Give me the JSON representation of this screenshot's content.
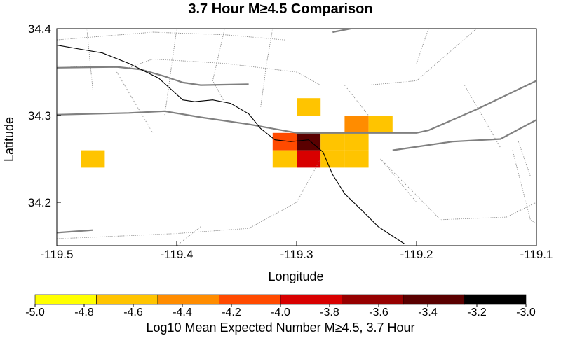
{
  "chart_data": {
    "type": "heatmap",
    "title": "3.7 Hour M≥4.5 Comparison",
    "xlabel": "Longitude",
    "ylabel": "Latitude",
    "xlim": [
      -119.5,
      -119.1
    ],
    "ylim": [
      34.15,
      34.4
    ],
    "x_ticks": [
      {
        "value": -119.5,
        "label": "-119.5"
      },
      {
        "value": -119.4,
        "label": "-119.4"
      },
      {
        "value": -119.3,
        "label": "-119.3"
      },
      {
        "value": -119.2,
        "label": "-119.2"
      },
      {
        "value": -119.1,
        "label": "-119.1"
      }
    ],
    "y_ticks": [
      {
        "value": 34.2,
        "label": "34.2"
      },
      {
        "value": 34.3,
        "label": "34.3"
      },
      {
        "value": 34.4,
        "label": "34.4"
      }
    ],
    "cell_size_deg": 0.02,
    "cells": [
      {
        "lon": -119.47,
        "lat": 34.25,
        "value": -4.7
      },
      {
        "lon": -119.29,
        "lat": 34.31,
        "value": -4.7
      },
      {
        "lon": -119.25,
        "lat": 34.29,
        "value": -4.5
      },
      {
        "lon": -119.23,
        "lat": 34.29,
        "value": -4.7
      },
      {
        "lon": -119.31,
        "lat": 34.27,
        "value": -4.1
      },
      {
        "lon": -119.29,
        "lat": 34.27,
        "value": -3.3
      },
      {
        "lon": -119.27,
        "lat": 34.27,
        "value": -4.7
      },
      {
        "lon": -119.25,
        "lat": 34.27,
        "value": -4.7
      },
      {
        "lon": -119.31,
        "lat": 34.25,
        "value": -4.7
      },
      {
        "lon": -119.29,
        "lat": 34.25,
        "value": -3.9
      },
      {
        "lon": -119.27,
        "lat": 34.25,
        "value": -4.7
      },
      {
        "lon": -119.25,
        "lat": 34.25,
        "value": -4.7
      }
    ],
    "colorbar": {
      "label": "Log10 Mean Expected Number M≥4.5, 3.7 Hour",
      "min": -5.0,
      "max": -3.0,
      "colors": [
        "#ffff00",
        "#ffc400",
        "#ff8c00",
        "#ff4a00",
        "#d80000",
        "#960000",
        "#5a0000",
        "#000000"
      ],
      "ticks": [
        "-5.0",
        "-4.8",
        "-4.6",
        "-4.4",
        "-4.2",
        "-4.0",
        "-3.8",
        "-3.6",
        "-3.4",
        "-3.2",
        "-3.0"
      ]
    },
    "grid": false,
    "map_lines": {
      "coastline": [
        [
          -119.5,
          34.381
        ],
        [
          -119.462,
          34.372
        ],
        [
          -119.44,
          34.36
        ],
        [
          -119.415,
          34.343
        ],
        [
          -119.395,
          34.318
        ],
        [
          -119.385,
          34.316
        ],
        [
          -119.37,
          34.318
        ],
        [
          -119.355,
          34.314
        ],
        [
          -119.34,
          34.302
        ],
        [
          -119.33,
          34.285
        ],
        [
          -119.318,
          34.272
        ],
        [
          -119.305,
          34.27
        ],
        [
          -119.29,
          34.272
        ],
        [
          -119.278,
          34.258
        ],
        [
          -119.27,
          34.232
        ],
        [
          -119.26,
          34.21
        ],
        [
          -119.245,
          34.19
        ],
        [
          -119.232,
          34.172
        ],
        [
          -119.21,
          34.152
        ]
      ],
      "major_roads": [
        [
          [
            -119.5,
            34.355
          ],
          [
            -119.45,
            34.356
          ],
          [
            -119.43,
            34.353
          ],
          [
            -119.41,
            34.345
          ],
          [
            -119.395,
            34.338
          ],
          [
            -119.38,
            34.335
          ],
          [
            -119.34,
            34.336
          ]
        ],
        [
          [
            -119.5,
            34.301
          ],
          [
            -119.44,
            34.303
          ],
          [
            -119.41,
            34.305
          ],
          [
            -119.38,
            34.298
          ],
          [
            -119.34,
            34.29
          ],
          [
            -119.3,
            34.28
          ],
          [
            -119.2,
            34.28
          ],
          [
            -119.19,
            34.283
          ],
          [
            -119.15,
            34.307
          ],
          [
            -119.1,
            34.34
          ]
        ],
        [
          [
            -119.22,
            34.26
          ],
          [
            -119.17,
            34.27
          ],
          [
            -119.13,
            34.273
          ],
          [
            -119.1,
            34.295
          ]
        ],
        [
          [
            -119.5,
            34.165
          ],
          [
            -119.47,
            34.168
          ]
        ],
        [
          [
            -119.27,
            34.396
          ],
          [
            -119.255,
            34.4
          ]
        ]
      ],
      "minor_roads": [
        [
          [
            -119.5,
            34.387
          ],
          [
            -119.42,
            34.396
          ],
          [
            -119.36,
            34.393
          ],
          [
            -119.31,
            34.387
          ]
        ],
        [
          [
            -119.32,
            34.4
          ],
          [
            -119.325,
            34.36
          ],
          [
            -119.33,
            34.31
          ]
        ],
        [
          [
            -119.5,
            34.357
          ],
          [
            -119.44,
            34.355
          ],
          [
            -119.42,
            34.365
          ],
          [
            -119.36,
            34.36
          ],
          [
            -119.3,
            34.35
          ],
          [
            -119.28,
            34.335
          ],
          [
            -119.24,
            34.335
          ],
          [
            -119.2,
            34.34
          ],
          [
            -119.15,
            34.4
          ]
        ],
        [
          [
            -119.36,
            34.4
          ],
          [
            -119.37,
            34.34
          ],
          [
            -119.36,
            34.315
          ]
        ],
        [
          [
            -119.4,
            34.4
          ],
          [
            -119.405,
            34.35
          ],
          [
            -119.41,
            34.3
          ]
        ],
        [
          [
            -119.475,
            34.4
          ],
          [
            -119.47,
            34.33
          ]
        ],
        [
          [
            -119.45,
            34.35
          ],
          [
            -119.42,
            34.28
          ]
        ],
        [
          [
            -119.5,
            34.158
          ],
          [
            -119.4,
            34.164
          ],
          [
            -119.34,
            34.17
          ],
          [
            -119.3,
            34.2
          ],
          [
            -119.28,
            34.25
          ]
        ],
        [
          [
            -119.38,
            34.172
          ],
          [
            -119.4,
            34.15
          ]
        ],
        [
          [
            -119.26,
            34.335
          ],
          [
            -119.24,
            34.3
          ]
        ],
        [
          [
            -119.23,
            34.25
          ],
          [
            -119.18,
            34.18
          ],
          [
            -119.125,
            34.183
          ],
          [
            -119.1,
            34.2
          ]
        ],
        [
          [
            -119.23,
            34.25
          ],
          [
            -119.2,
            34.2
          ]
        ],
        [
          [
            -119.16,
            34.335
          ],
          [
            -119.13,
            34.263
          ]
        ],
        [
          [
            -119.115,
            34.27
          ],
          [
            -119.105,
            34.23
          ]
        ],
        [
          [
            -119.12,
            34.26
          ],
          [
            -119.105,
            34.18
          ],
          [
            -119.1,
            34.175
          ]
        ],
        [
          [
            -119.2,
            34.36
          ],
          [
            -119.19,
            34.4
          ]
        ]
      ]
    }
  }
}
